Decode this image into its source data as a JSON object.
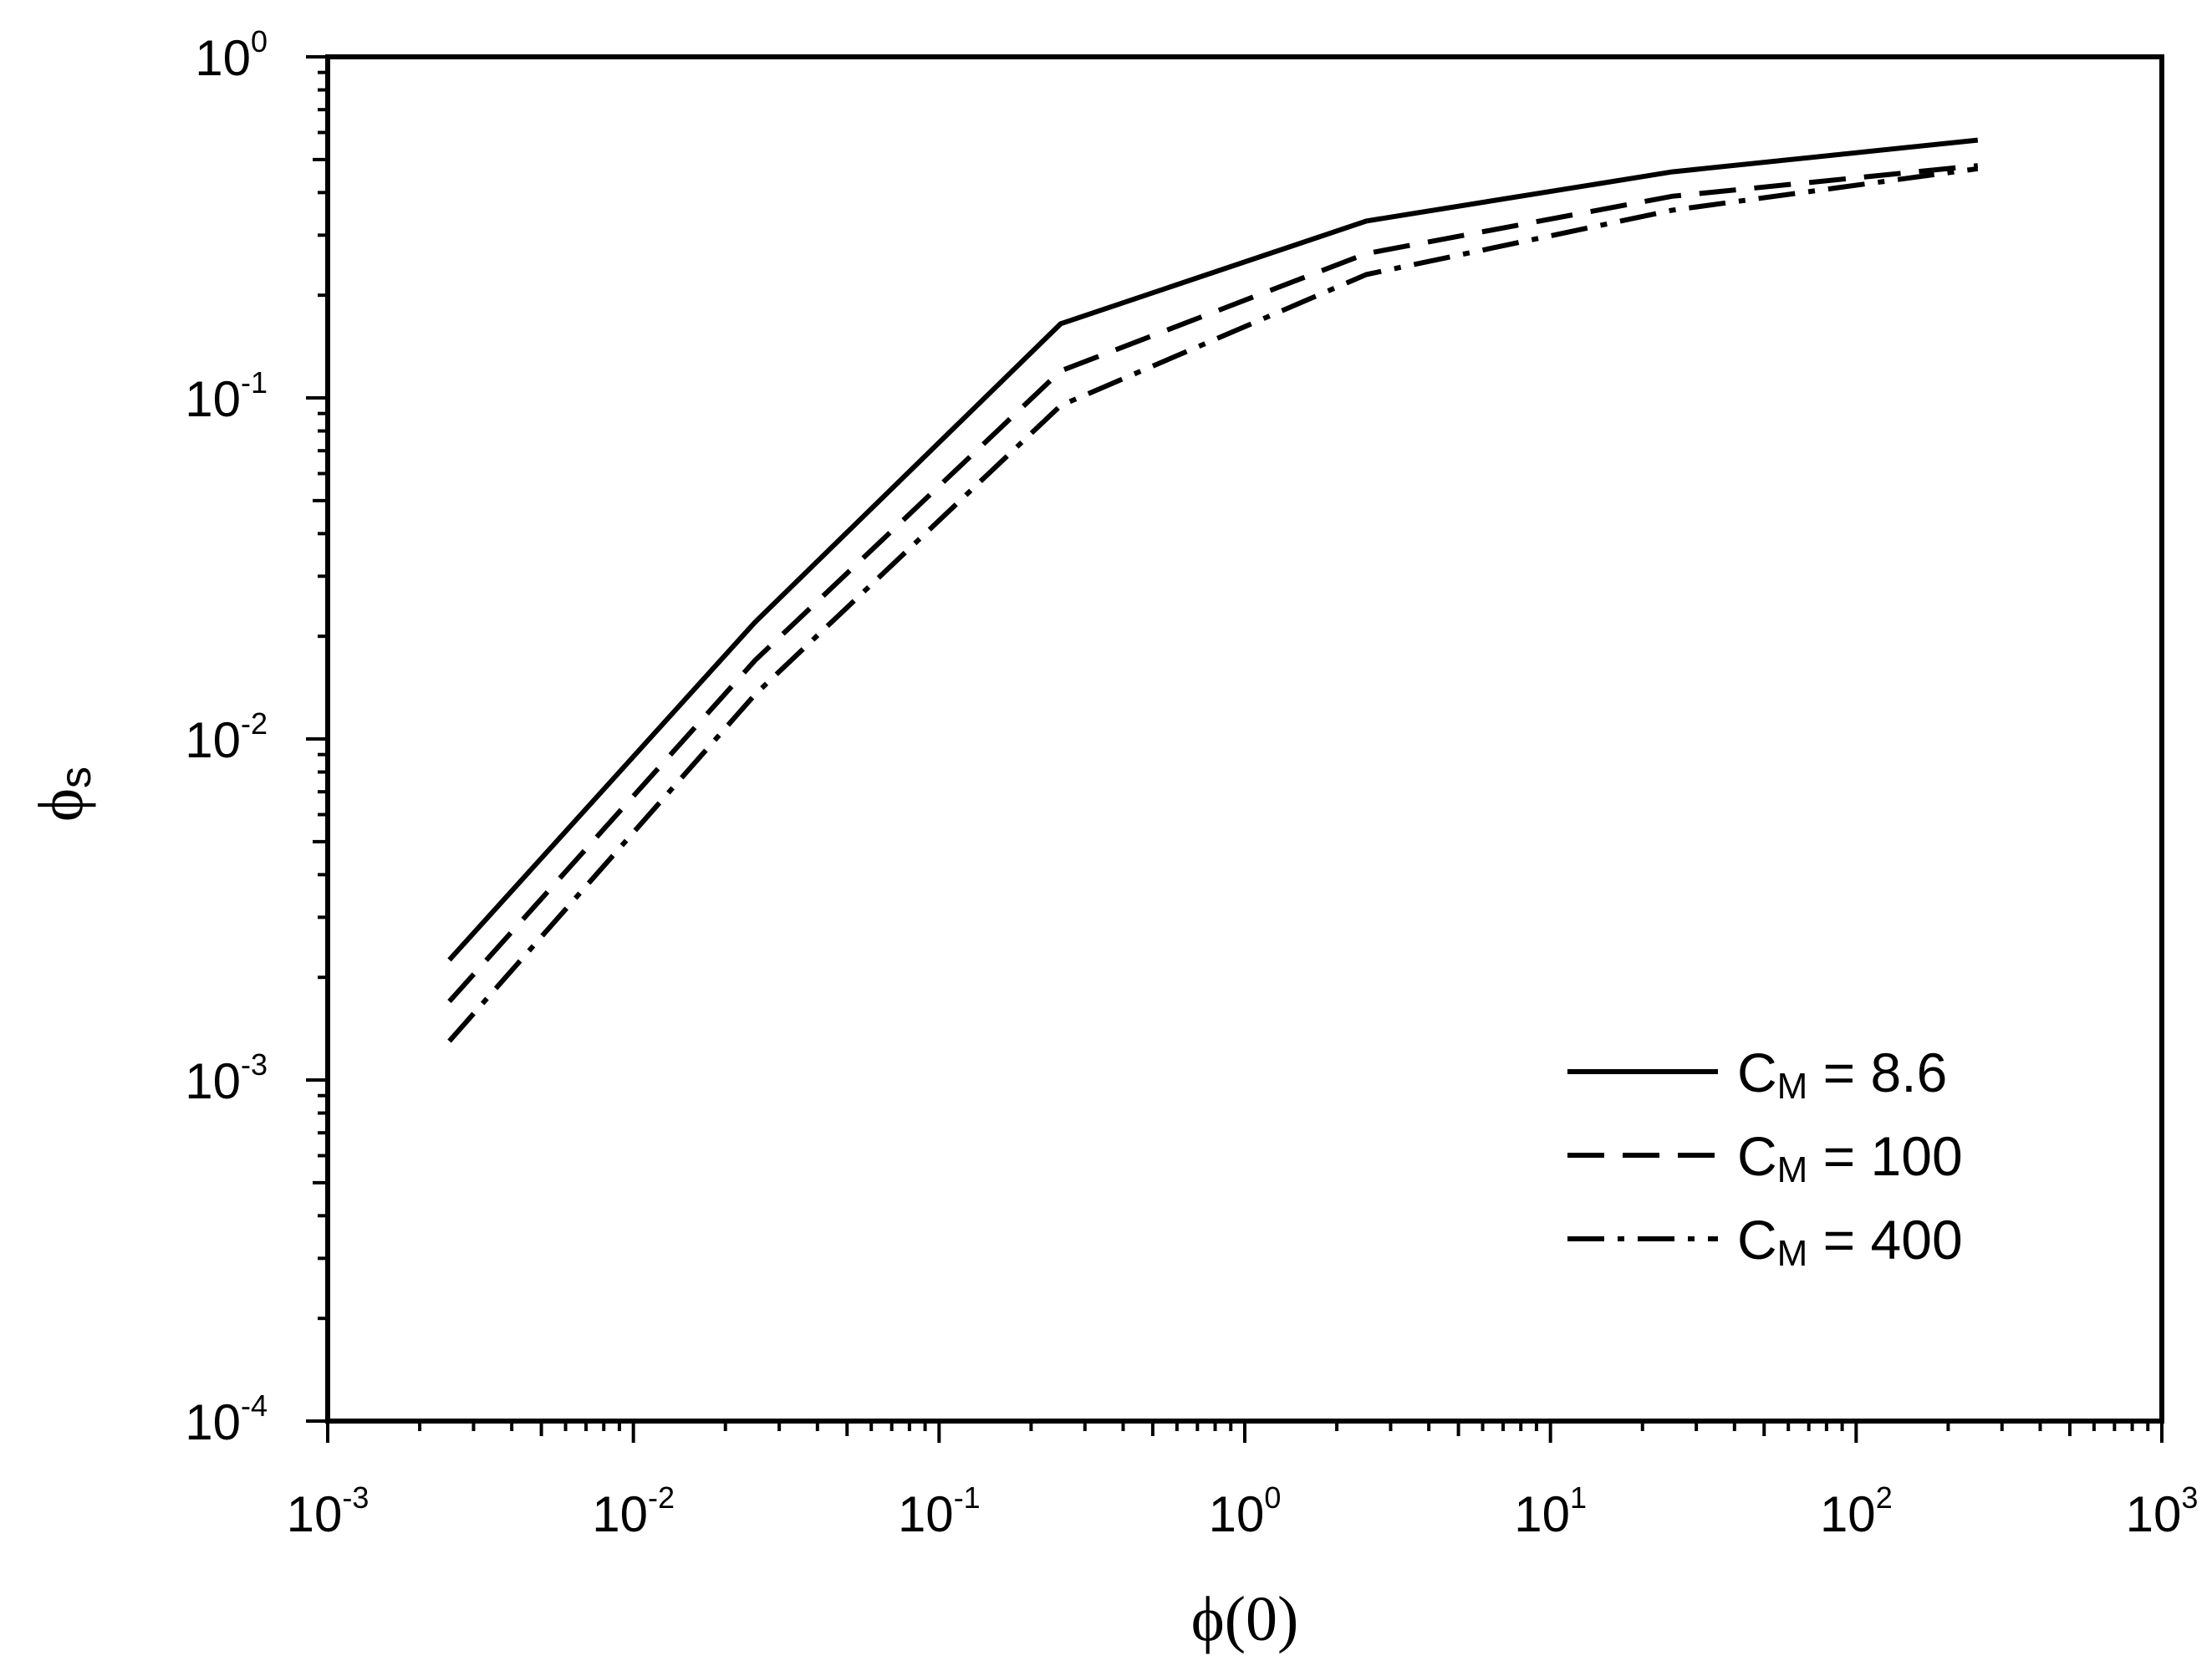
{
  "chart_data": {
    "type": "line",
    "x_scale": "log",
    "y_scale": "log",
    "xlim": [
      0.001,
      1000
    ],
    "ylim": [
      0.0001,
      1
    ],
    "x_ticks": [
      {
        "base": "10",
        "exp": "-3"
      },
      {
        "base": "10",
        "exp": "-2"
      },
      {
        "base": "10",
        "exp": "-1"
      },
      {
        "base": "10",
        "exp": "0"
      },
      {
        "base": "10",
        "exp": "1"
      },
      {
        "base": "10",
        "exp": "2"
      },
      {
        "base": "10",
        "exp": "3"
      }
    ],
    "y_ticks": [
      {
        "base": "10",
        "exp": "-4"
      },
      {
        "base": "10",
        "exp": "-3"
      },
      {
        "base": "10",
        "exp": "-2"
      },
      {
        "base": "10",
        "exp": "-1"
      },
      {
        "base": "10",
        "exp": "0"
      }
    ],
    "xlabel": "ϕ(0)",
    "ylabel": {
      "main": "ϕ",
      "sub": "s"
    },
    "legend_position": "bottom-right",
    "series": [
      {
        "name": {
          "main": "C",
          "sub": "M",
          "rest": " = 8.6"
        },
        "style": "solid",
        "x": [
          0.0025,
          0.025,
          0.25,
          2.5,
          25,
          250
        ],
        "y": [
          0.00225,
          0.022,
          0.165,
          0.33,
          0.46,
          0.57
        ]
      },
      {
        "name": {
          "main": "C",
          "sub": "M",
          "rest": " = 100"
        },
        "style": "dashed",
        "x": [
          0.0025,
          0.025,
          0.25,
          2.5,
          25,
          250
        ],
        "y": [
          0.0017,
          0.017,
          0.12,
          0.265,
          0.39,
          0.48
        ]
      },
      {
        "name": {
          "main": "C",
          "sub": "M",
          "rest": " = 400"
        },
        "style": "dash-dot",
        "x": [
          0.0025,
          0.025,
          0.25,
          2.5,
          25,
          250
        ],
        "y": [
          0.0013,
          0.0135,
          0.095,
          0.23,
          0.355,
          0.47
        ]
      }
    ],
    "colors": {
      "line": "#000000",
      "background": "#ffffff"
    }
  }
}
